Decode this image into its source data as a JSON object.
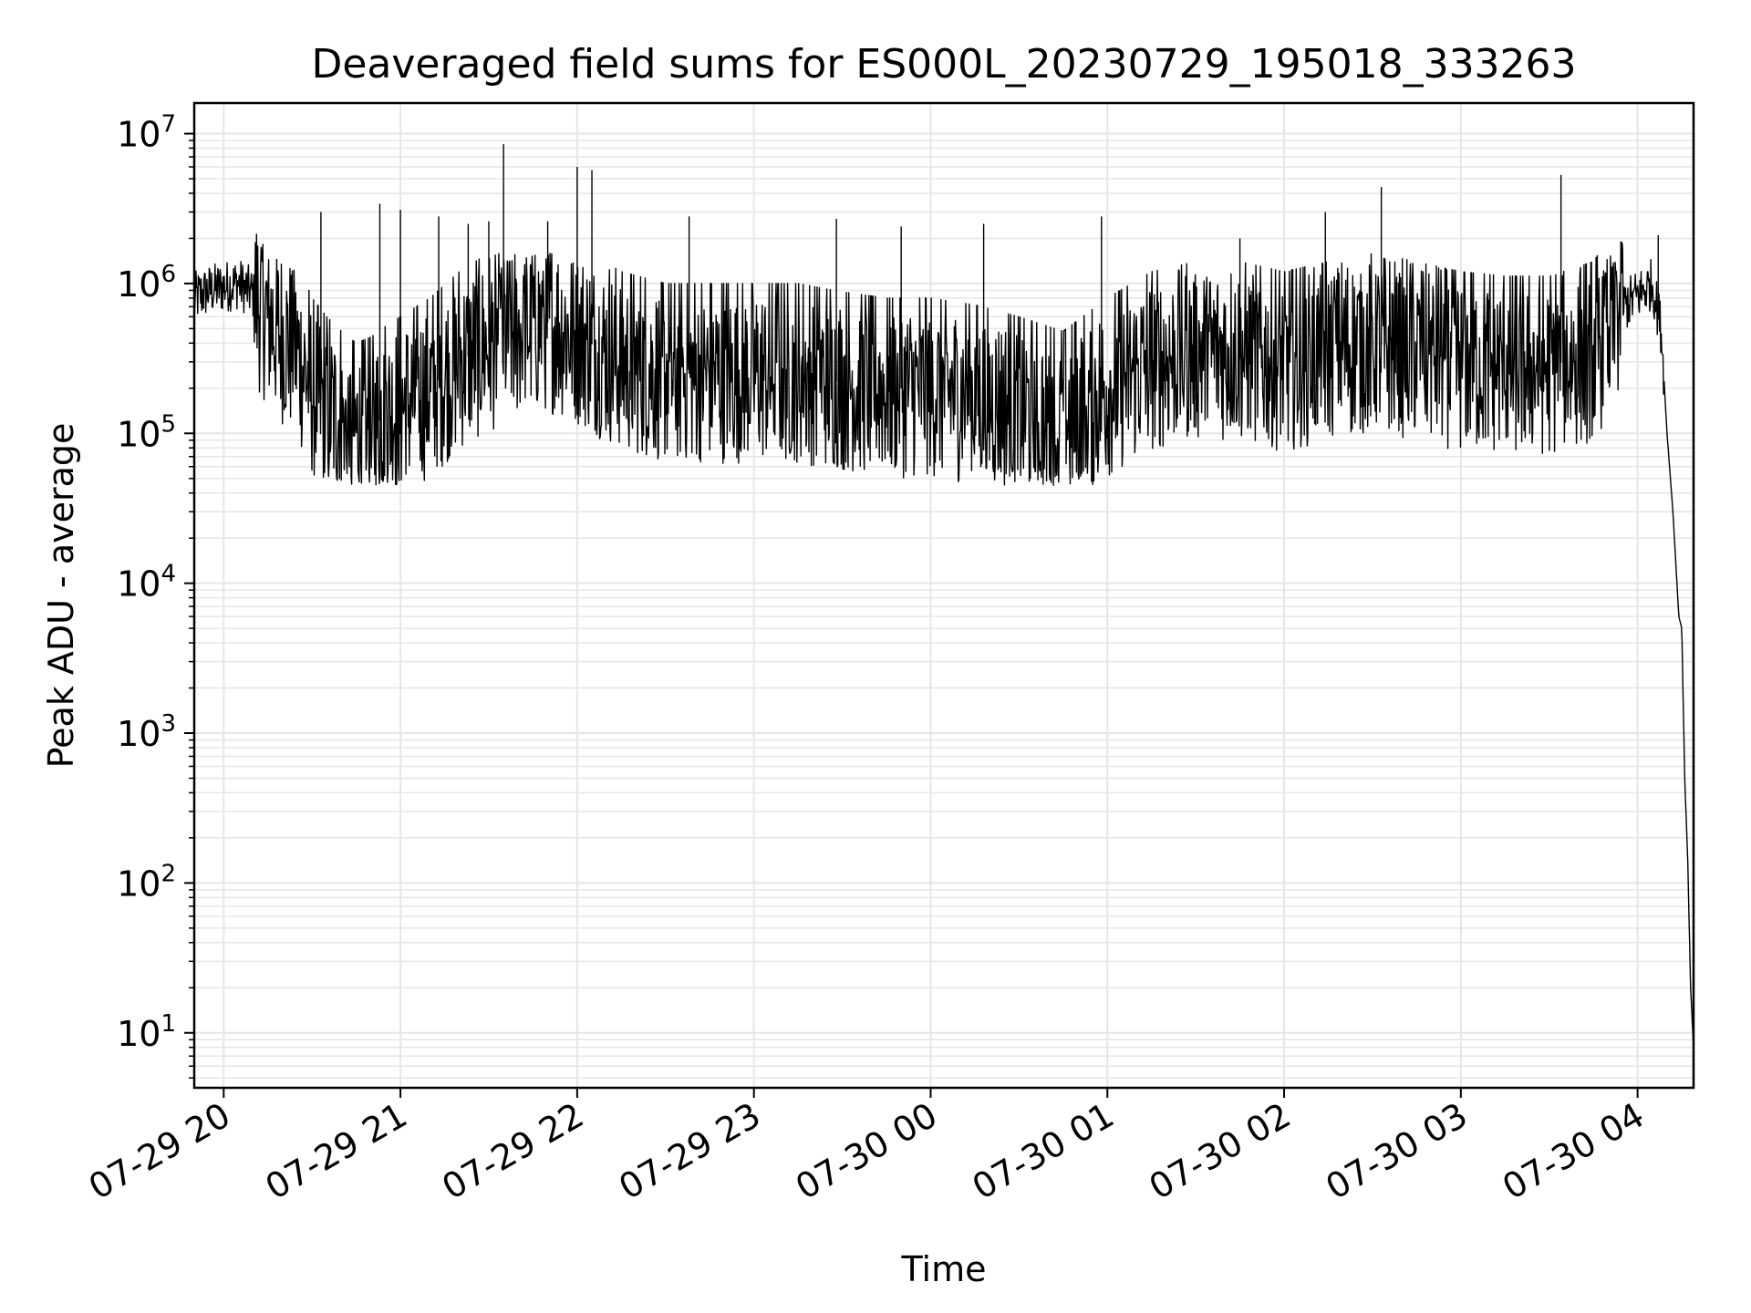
{
  "chart_data": {
    "type": "line",
    "title": "Deaveraged field sums for ES000L_20230729_195018_333263",
    "xlabel": "Time",
    "ylabel": "Peak ADU - average",
    "yscale": "log",
    "ylim": [
      4.3,
      16000000
    ],
    "xlim": [
      "2023-07-29 19:50",
      "2023-07-30 04:19"
    ],
    "grid": true,
    "line_color": "#000000",
    "grid_color": "#e6e6e6",
    "x_ticks": [
      "07-29 20",
      "07-29 21",
      "07-29 22",
      "07-29 23",
      "07-30 00",
      "07-30 01",
      "07-30 02",
      "07-30 03",
      "07-30 04"
    ],
    "y_ticks": [
      {
        "base": "10",
        "exp": "1",
        "value": 10
      },
      {
        "base": "10",
        "exp": "2",
        "value": 100
      },
      {
        "base": "10",
        "exp": "3",
        "value": 1000
      },
      {
        "base": "10",
        "exp": "4",
        "value": 10000
      },
      {
        "base": "10",
        "exp": "5",
        "value": 100000
      },
      {
        "base": "10",
        "exp": "6",
        "value": 1000000
      },
      {
        "base": "10",
        "exp": "7",
        "value": 10000000
      }
    ],
    "series": [
      {
        "points": [
          [
            "2023-07-29 19:50",
            800000
          ],
          [
            "2023-07-29 19:55",
            900000
          ],
          [
            "2023-07-29 20:00",
            950000
          ],
          [
            "2023-07-29 20:05",
            1000000
          ],
          [
            "2023-07-29 20:10",
            850000
          ],
          [
            "2023-07-29 20:15",
            600000
          ],
          [
            "2023-07-29 20:20",
            450000
          ],
          [
            "2023-07-29 20:25",
            350000
          ],
          [
            "2023-07-29 20:30",
            200000
          ],
          [
            "2023-07-29 20:35",
            150000
          ],
          [
            "2023-07-29 20:40",
            120000
          ],
          [
            "2023-07-29 20:45",
            100000
          ],
          [
            "2023-07-29 20:50",
            110000
          ],
          [
            "2023-07-29 20:55",
            130000
          ],
          [
            "2023-07-29 21:00",
            150000
          ],
          [
            "2023-07-29 21:10",
            200000
          ],
          [
            "2023-07-29 21:20",
            300000
          ],
          [
            "2023-07-29 21:30",
            400000
          ],
          [
            "2023-07-29 21:40",
            500000
          ],
          [
            "2023-07-29 21:50",
            550000
          ],
          [
            "2023-07-29 22:00",
            450000
          ],
          [
            "2023-07-29 22:15",
            300000
          ],
          [
            "2023-07-29 22:30",
            250000
          ],
          [
            "2023-07-29 22:45",
            250000
          ],
          [
            "2023-07-29 23:00",
            250000
          ],
          [
            "2023-07-29 23:15",
            250000
          ],
          [
            "2023-07-29 23:30",
            220000
          ],
          [
            "2023-07-29 23:45",
            200000
          ],
          [
            "2023-07-30 00:00",
            200000
          ],
          [
            "2023-07-30 00:15",
            180000
          ],
          [
            "2023-07-30 00:30",
            150000
          ],
          [
            "2023-07-30 00:45",
            120000
          ],
          [
            "2023-07-30 01:00",
            200000
          ],
          [
            "2023-07-30 01:15",
            300000
          ],
          [
            "2023-07-30 01:30",
            350000
          ],
          [
            "2023-07-30 01:45",
            350000
          ],
          [
            "2023-07-30 02:00",
            300000
          ],
          [
            "2023-07-30 02:15",
            350000
          ],
          [
            "2023-07-30 02:30",
            400000
          ],
          [
            "2023-07-30 02:45",
            350000
          ],
          [
            "2023-07-30 03:00",
            300000
          ],
          [
            "2023-07-30 03:15",
            280000
          ],
          [
            "2023-07-30 03:30",
            280000
          ],
          [
            "2023-07-30 03:45",
            350000
          ],
          [
            "2023-07-30 03:55",
            700000
          ],
          [
            "2023-07-30 04:05",
            1000000
          ],
          [
            "2023-07-30 04:08",
            500000
          ],
          [
            "2023-07-30 04:10",
            100000
          ],
          [
            "2023-07-30 04:12",
            30000
          ],
          [
            "2023-07-30 04:14",
            6000
          ],
          [
            "2023-07-30 04:15",
            5000
          ],
          [
            "2023-07-30 04:16",
            500
          ],
          [
            "2023-07-30 04:17",
            150
          ],
          [
            "2023-07-30 04:18",
            20
          ],
          [
            "2023-07-30 04:19",
            8
          ]
        ],
        "spikes": [
          [
            "2023-07-29 20:33",
            3000000
          ],
          [
            "2023-07-29 20:53",
            3400000
          ],
          [
            "2023-07-29 21:00",
            3100000
          ],
          [
            "2023-07-29 21:13",
            2800000
          ],
          [
            "2023-07-29 21:23",
            2500000
          ],
          [
            "2023-07-29 21:30",
            2600000
          ],
          [
            "2023-07-29 21:35",
            8500000
          ],
          [
            "2023-07-29 21:50",
            2600000
          ],
          [
            "2023-07-29 22:00",
            6000000
          ],
          [
            "2023-07-29 22:05",
            5700000
          ],
          [
            "2023-07-29 22:38",
            2800000
          ],
          [
            "2023-07-29 23:28",
            2700000
          ],
          [
            "2023-07-29 23:50",
            2400000
          ],
          [
            "2023-07-30 00:18",
            2500000
          ],
          [
            "2023-07-30 00:58",
            2800000
          ],
          [
            "2023-07-30 01:45",
            2000000
          ],
          [
            "2023-07-30 02:14",
            3000000
          ],
          [
            "2023-07-30 02:33",
            4400000
          ],
          [
            "2023-07-30 03:34",
            5300000
          ],
          [
            "2023-07-30 04:07",
            2100000
          ]
        ]
      }
    ]
  }
}
